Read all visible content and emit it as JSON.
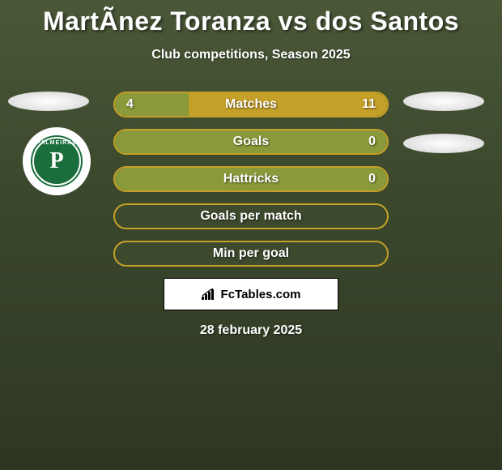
{
  "header": {
    "title": "MartÃ­nez Toranza vs dos Santos",
    "subtitle": "Club competitions, Season 2025"
  },
  "player_left_logo": {
    "name": "PALMEIRAS",
    "letter": "P",
    "bg_color": "#1a6e3c",
    "ring_color": "#ffffff"
  },
  "colors": {
    "left_player": "#8a9a3a",
    "right_player": "#c5a028",
    "row_border": "#c5a028",
    "row_bg": "#3d4a2e",
    "title_color": "#ffffff",
    "text_shadow": "rgba(0,0,0,0.5)"
  },
  "stats": [
    {
      "label": "Matches",
      "left_value": "4",
      "right_value": "11",
      "left_fill_pct": 27,
      "right_fill_pct": 73,
      "left_color": "#8a9a3a",
      "right_color": "#c5a028",
      "border_color": "#c5a028",
      "show_values": true
    },
    {
      "label": "Goals",
      "left_value": "",
      "right_value": "0",
      "left_fill_pct": 0,
      "right_fill_pct": 100,
      "left_color": "#8a9a3a",
      "right_color": "#8a9a3a",
      "border_color": "#c5a028",
      "show_values": true,
      "full_fill": true
    },
    {
      "label": "Hattricks",
      "left_value": "",
      "right_value": "0",
      "left_fill_pct": 0,
      "right_fill_pct": 100,
      "left_color": "#8a9a3a",
      "right_color": "#8a9a3a",
      "border_color": "#c5a028",
      "show_values": true,
      "full_fill": true
    },
    {
      "label": "Goals per match",
      "left_value": "",
      "right_value": "",
      "left_fill_pct": 0,
      "right_fill_pct": 0,
      "left_color": "#8a9a3a",
      "right_color": "#c5a028",
      "border_color": "#c5a028",
      "show_values": false,
      "empty": true
    },
    {
      "label": "Min per goal",
      "left_value": "",
      "right_value": "",
      "left_fill_pct": 0,
      "right_fill_pct": 0,
      "left_color": "#8a9a3a",
      "right_color": "#c5a028",
      "border_color": "#c5a028",
      "show_values": false,
      "empty": true
    }
  ],
  "attribution": {
    "text": "FcTables.com"
  },
  "date": "28 february 2025"
}
